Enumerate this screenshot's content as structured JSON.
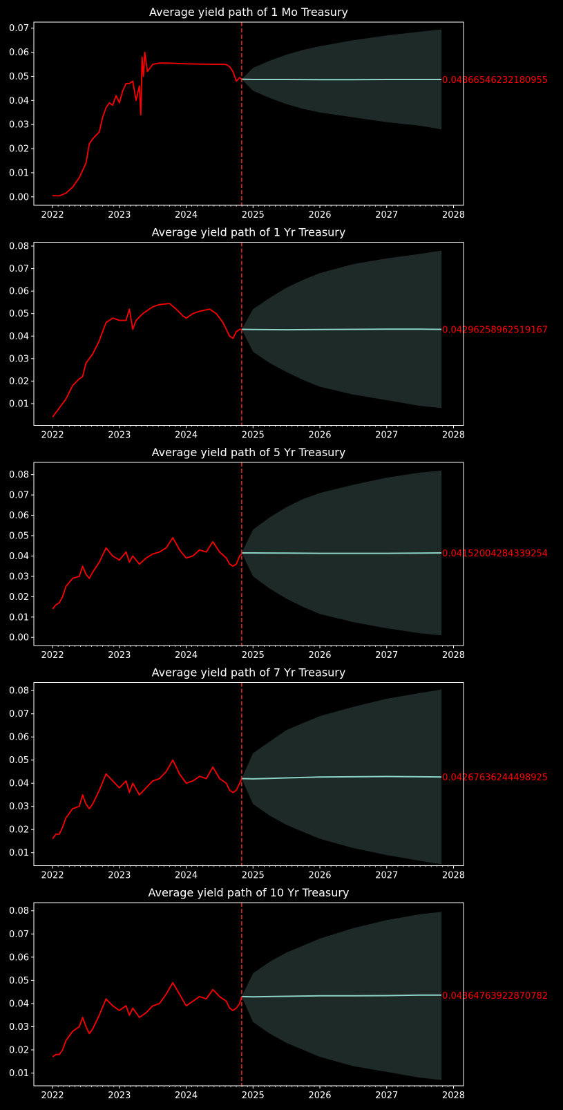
{
  "chart_data": [
    {
      "type": "line",
      "title": "Average yield path of 1 Mo Treasury",
      "xlabel": "",
      "ylabel": "",
      "xlim": [
        2021.72,
        2028.15
      ],
      "ylim": [
        -0.0035,
        0.0725
      ],
      "xticks": [
        2022,
        2023,
        2024,
        2025,
        2026,
        2027,
        2028
      ],
      "yticks": [
        "0.00",
        "0.01",
        "0.02",
        "0.03",
        "0.04",
        "0.05",
        "0.06",
        "0.07"
      ],
      "grid": false,
      "forecast_start": 2024.83,
      "end_label": "0.04866546232180955",
      "series": [
        {
          "role": "historical",
          "x": [
            2022.0,
            2022.1,
            2022.2,
            2022.3,
            2022.4,
            2022.5,
            2022.55,
            2022.6,
            2022.7,
            2022.75,
            2022.8,
            2022.85,
            2022.9,
            2022.95,
            2023.0,
            2023.05,
            2023.1,
            2023.15,
            2023.2,
            2023.25,
            2023.3,
            2023.32,
            2023.34,
            2023.36,
            2023.38,
            2023.42,
            2023.5,
            2023.6,
            2023.75,
            2023.9,
            2024.0,
            2024.2,
            2024.4,
            2024.55,
            2024.6,
            2024.65,
            2024.7,
            2024.75,
            2024.8,
            2024.83
          ],
          "y": [
            0.0005,
            0.0004,
            0.0015,
            0.004,
            0.008,
            0.014,
            0.022,
            0.024,
            0.027,
            0.033,
            0.037,
            0.039,
            0.038,
            0.042,
            0.039,
            0.044,
            0.047,
            0.047,
            0.048,
            0.04,
            0.046,
            0.034,
            0.058,
            0.05,
            0.06,
            0.052,
            0.055,
            0.0555,
            0.0555,
            0.0553,
            0.0552,
            0.0551,
            0.055,
            0.055,
            0.0549,
            0.054,
            0.052,
            0.048,
            0.0495,
            0.0488
          ]
        },
        {
          "role": "forecast-mean",
          "x": [
            2024.83,
            2025.0,
            2025.5,
            2026.0,
            2026.5,
            2027.0,
            2027.5,
            2027.82
          ],
          "y": [
            0.0488,
            0.0487,
            0.0487,
            0.0486,
            0.0486,
            0.0487,
            0.0487,
            0.0487
          ]
        },
        {
          "role": "forecast-band",
          "x": [
            2024.83,
            2025.0,
            2025.25,
            2025.5,
            2025.75,
            2026.0,
            2026.5,
            2027.0,
            2027.5,
            2027.82
          ],
          "lower": [
            0.0488,
            0.044,
            0.041,
            0.0385,
            0.0365,
            0.035,
            0.033,
            0.031,
            0.0295,
            0.028
          ],
          "upper": [
            0.0488,
            0.0535,
            0.0565,
            0.059,
            0.061,
            0.0625,
            0.065,
            0.067,
            0.0685,
            0.0695
          ]
        }
      ]
    },
    {
      "type": "line",
      "title": "Average yield path of 1 Yr Treasury",
      "xlabel": "",
      "ylabel": "",
      "xlim": [
        2021.72,
        2028.15
      ],
      "ylim": [
        0.0003,
        0.0817
      ],
      "xticks": [
        2022,
        2023,
        2024,
        2025,
        2026,
        2027,
        2028
      ],
      "yticks": [
        "0.01",
        "0.02",
        "0.03",
        "0.04",
        "0.05",
        "0.06",
        "0.07",
        "0.08"
      ],
      "grid": false,
      "forecast_start": 2024.83,
      "end_label": "0.04296258962519167",
      "series": [
        {
          "role": "historical",
          "x": [
            2022.0,
            2022.1,
            2022.2,
            2022.3,
            2022.4,
            2022.45,
            2022.5,
            2022.55,
            2022.6,
            2022.7,
            2022.75,
            2022.8,
            2022.9,
            2023.0,
            2023.1,
            2023.15,
            2023.2,
            2023.25,
            2023.35,
            2023.5,
            2023.6,
            2023.75,
            2023.85,
            2023.95,
            2024.0,
            2024.1,
            2024.2,
            2024.35,
            2024.45,
            2024.55,
            2024.6,
            2024.65,
            2024.7,
            2024.75,
            2024.8,
            2024.83
          ],
          "y": [
            0.004,
            0.008,
            0.012,
            0.018,
            0.021,
            0.022,
            0.028,
            0.03,
            0.032,
            0.038,
            0.042,
            0.046,
            0.048,
            0.047,
            0.047,
            0.052,
            0.043,
            0.047,
            0.05,
            0.053,
            0.054,
            0.0545,
            0.052,
            0.049,
            0.048,
            0.05,
            0.051,
            0.052,
            0.05,
            0.046,
            0.043,
            0.04,
            0.039,
            0.042,
            0.043,
            0.043
          ]
        },
        {
          "role": "forecast-mean",
          "x": [
            2024.83,
            2025.0,
            2025.5,
            2026.0,
            2026.5,
            2027.0,
            2027.5,
            2027.82
          ],
          "y": [
            0.043,
            0.0429,
            0.0428,
            0.0429,
            0.043,
            0.0431,
            0.0431,
            0.043
          ]
        },
        {
          "role": "forecast-band",
          "x": [
            2024.83,
            2025.0,
            2025.25,
            2025.5,
            2025.75,
            2026.0,
            2026.5,
            2027.0,
            2027.5,
            2027.82
          ],
          "lower": [
            0.043,
            0.033,
            0.028,
            0.024,
            0.0205,
            0.0175,
            0.014,
            0.0115,
            0.009,
            0.008
          ],
          "upper": [
            0.043,
            0.052,
            0.057,
            0.0615,
            0.065,
            0.068,
            0.072,
            0.0745,
            0.0765,
            0.078
          ]
        }
      ]
    },
    {
      "type": "line",
      "title": "Average yield path of 5 Yr Treasury",
      "xlabel": "",
      "ylabel": "",
      "xlim": [
        2021.72,
        2028.15
      ],
      "ylim": [
        -0.004,
        0.086
      ],
      "xticks": [
        2022,
        2023,
        2024,
        2025,
        2026,
        2027,
        2028
      ],
      "yticks": [
        "0.00",
        "0.01",
        "0.02",
        "0.03",
        "0.04",
        "0.05",
        "0.06",
        "0.07",
        "0.08"
      ],
      "grid": false,
      "forecast_start": 2024.83,
      "end_label": "0.04152004284339254",
      "series": [
        {
          "role": "historical",
          "x": [
            2022.0,
            2022.05,
            2022.1,
            2022.15,
            2022.2,
            2022.3,
            2022.4,
            2022.45,
            2022.5,
            2022.55,
            2022.6,
            2022.7,
            2022.8,
            2022.9,
            2023.0,
            2023.1,
            2023.15,
            2023.2,
            2023.3,
            2023.4,
            2023.5,
            2023.6,
            2023.7,
            2023.8,
            2023.9,
            2024.0,
            2024.1,
            2024.2,
            2024.3,
            2024.4,
            2024.5,
            2024.6,
            2024.65,
            2024.7,
            2024.75,
            2024.8,
            2024.83
          ],
          "y": [
            0.014,
            0.016,
            0.017,
            0.02,
            0.025,
            0.029,
            0.03,
            0.035,
            0.031,
            0.029,
            0.032,
            0.037,
            0.044,
            0.04,
            0.038,
            0.042,
            0.037,
            0.04,
            0.036,
            0.039,
            0.041,
            0.042,
            0.044,
            0.049,
            0.043,
            0.039,
            0.04,
            0.043,
            0.042,
            0.047,
            0.042,
            0.039,
            0.036,
            0.035,
            0.036,
            0.04,
            0.041
          ]
        },
        {
          "role": "forecast-mean",
          "x": [
            2024.83,
            2025.0,
            2025.5,
            2026.0,
            2026.5,
            2027.0,
            2027.5,
            2027.82
          ],
          "y": [
            0.0415,
            0.0415,
            0.0414,
            0.0413,
            0.0413,
            0.0413,
            0.0414,
            0.0415
          ]
        },
        {
          "role": "forecast-band",
          "x": [
            2024.83,
            2025.0,
            2025.25,
            2025.5,
            2025.75,
            2026.0,
            2026.5,
            2027.0,
            2027.5,
            2027.82
          ],
          "lower": [
            0.0415,
            0.03,
            0.024,
            0.019,
            0.015,
            0.0115,
            0.0075,
            0.0045,
            0.002,
            0.001
          ],
          "upper": [
            0.0415,
            0.053,
            0.059,
            0.064,
            0.068,
            0.071,
            0.075,
            0.0785,
            0.081,
            0.082
          ]
        }
      ]
    },
    {
      "type": "line",
      "title": "Average yield path of 7 Yr Treasury",
      "xlabel": "",
      "ylabel": "",
      "xlim": [
        2021.72,
        2028.15
      ],
      "ylim": [
        0.0044,
        0.0835
      ],
      "xticks": [
        2022,
        2023,
        2024,
        2025,
        2026,
        2027,
        2028
      ],
      "yticks": [
        "0.01",
        "0.02",
        "0.03",
        "0.04",
        "0.05",
        "0.06",
        "0.07",
        "0.08"
      ],
      "grid": false,
      "forecast_start": 2024.83,
      "end_label": "0.04267636244498925",
      "series": [
        {
          "role": "historical",
          "x": [
            2022.0,
            2022.05,
            2022.1,
            2022.15,
            2022.2,
            2022.3,
            2022.4,
            2022.45,
            2022.5,
            2022.55,
            2022.6,
            2022.7,
            2022.8,
            2022.9,
            2023.0,
            2023.1,
            2023.15,
            2023.2,
            2023.3,
            2023.4,
            2023.5,
            2023.6,
            2023.7,
            2023.8,
            2023.9,
            2024.0,
            2024.1,
            2024.2,
            2024.3,
            2024.4,
            2024.5,
            2024.6,
            2024.65,
            2024.7,
            2024.75,
            2024.8,
            2024.83
          ],
          "y": [
            0.016,
            0.018,
            0.018,
            0.021,
            0.025,
            0.029,
            0.03,
            0.035,
            0.031,
            0.029,
            0.031,
            0.037,
            0.044,
            0.041,
            0.038,
            0.041,
            0.036,
            0.04,
            0.035,
            0.038,
            0.041,
            0.042,
            0.045,
            0.05,
            0.044,
            0.04,
            0.041,
            0.043,
            0.042,
            0.047,
            0.042,
            0.04,
            0.037,
            0.036,
            0.037,
            0.04,
            0.042
          ]
        },
        {
          "role": "forecast-mean",
          "x": [
            2024.83,
            2025.0,
            2025.5,
            2026.0,
            2026.5,
            2027.0,
            2027.5,
            2027.82
          ],
          "y": [
            0.042,
            0.0419,
            0.0423,
            0.0427,
            0.0428,
            0.0429,
            0.0428,
            0.0427
          ]
        },
        {
          "role": "forecast-band",
          "x": [
            2024.83,
            2025.0,
            2025.25,
            2025.5,
            2025.75,
            2026.0,
            2026.5,
            2027.0,
            2027.5,
            2027.82
          ],
          "lower": [
            0.042,
            0.031,
            0.026,
            0.022,
            0.019,
            0.016,
            0.012,
            0.009,
            0.0065,
            0.005
          ],
          "upper": [
            0.042,
            0.053,
            0.058,
            0.063,
            0.066,
            0.069,
            0.073,
            0.0765,
            0.079,
            0.0805
          ]
        }
      ]
    },
    {
      "type": "line",
      "title": "Average yield path of 10 Yr Treasury",
      "xlabel": "",
      "ylabel": "",
      "xlim": [
        2021.72,
        2028.15
      ],
      "ylim": [
        0.0045,
        0.0835
      ],
      "xticks": [
        2022,
        2023,
        2024,
        2025,
        2026,
        2027,
        2028
      ],
      "yticks": [
        "0.01",
        "0.02",
        "0.03",
        "0.04",
        "0.05",
        "0.06",
        "0.07",
        "0.08"
      ],
      "grid": false,
      "forecast_start": 2024.83,
      "end_label": "0.04364763922870782",
      "series": [
        {
          "role": "historical",
          "x": [
            2022.0,
            2022.05,
            2022.1,
            2022.15,
            2022.2,
            2022.3,
            2022.4,
            2022.45,
            2022.5,
            2022.55,
            2022.6,
            2022.7,
            2022.8,
            2022.9,
            2023.0,
            2023.1,
            2023.15,
            2023.2,
            2023.3,
            2023.4,
            2023.5,
            2023.6,
            2023.7,
            2023.8,
            2023.9,
            2024.0,
            2024.1,
            2024.2,
            2024.3,
            2024.4,
            2024.5,
            2024.6,
            2024.65,
            2024.7,
            2024.75,
            2024.8,
            2024.83
          ],
          "y": [
            0.017,
            0.018,
            0.018,
            0.02,
            0.024,
            0.028,
            0.03,
            0.034,
            0.03,
            0.027,
            0.029,
            0.035,
            0.042,
            0.039,
            0.037,
            0.039,
            0.035,
            0.038,
            0.034,
            0.036,
            0.039,
            0.04,
            0.044,
            0.049,
            0.044,
            0.039,
            0.041,
            0.043,
            0.042,
            0.046,
            0.043,
            0.041,
            0.038,
            0.037,
            0.038,
            0.04,
            0.043
          ]
        },
        {
          "role": "forecast-mean",
          "x": [
            2024.83,
            2025.0,
            2025.5,
            2026.0,
            2026.5,
            2027.0,
            2027.5,
            2027.82
          ],
          "y": [
            0.043,
            0.0429,
            0.0431,
            0.0433,
            0.0433,
            0.0434,
            0.0436,
            0.0436
          ]
        },
        {
          "role": "forecast-band",
          "x": [
            2024.83,
            2025.0,
            2025.25,
            2025.5,
            2025.75,
            2026.0,
            2026.5,
            2027.0,
            2027.5,
            2027.82
          ],
          "lower": [
            0.043,
            0.032,
            0.027,
            0.023,
            0.02,
            0.017,
            0.013,
            0.0105,
            0.008,
            0.007
          ],
          "upper": [
            0.043,
            0.053,
            0.058,
            0.062,
            0.065,
            0.068,
            0.0725,
            0.076,
            0.0785,
            0.0795
          ]
        }
      ]
    }
  ],
  "colors": {
    "background": "#000000",
    "axes": "#ffffff",
    "text": "#ffffff",
    "historical_line": "#ff0000",
    "forecast_line": "#8dd3c7",
    "forecast_band": "#1e2a28",
    "forecast_start_line": "#e8231e",
    "end_label": "#ff0000"
  }
}
